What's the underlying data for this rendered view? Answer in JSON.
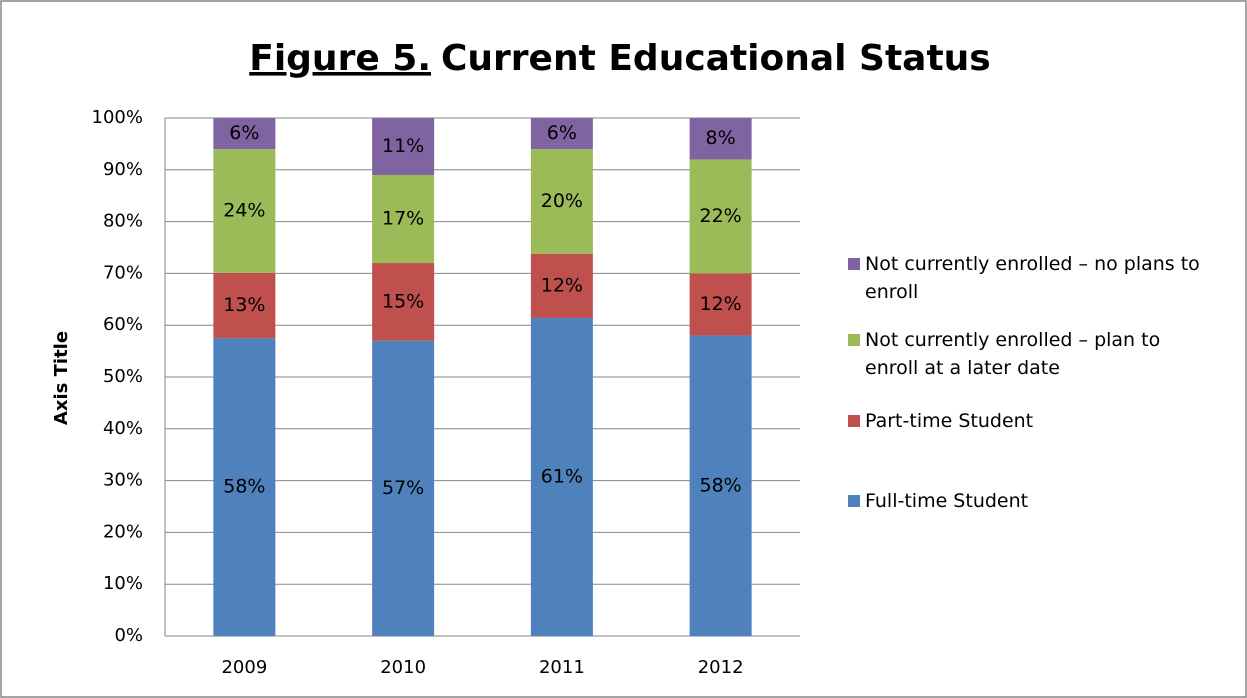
{
  "chart_data": {
    "type": "stacked_bar",
    "title": [
      "Figure 5.",
      "Current Educational Status"
    ],
    "y_axis_label": "Axis Title",
    "categories": [
      "2009",
      "2010",
      "2011",
      "2012"
    ],
    "series": [
      {
        "name": "Full-time Student",
        "color": "#4f81bd",
        "values": [
          57.5,
          57,
          61.4,
          58
        ],
        "value_labels": [
          "58%",
          "57%",
          "61%",
          "58%"
        ]
      },
      {
        "name": "Part-time Student",
        "color": "#c0504d",
        "values": [
          12.6,
          15,
          12.4,
          12
        ],
        "value_labels": [
          "13%",
          "15%",
          "12%",
          "12%"
        ]
      },
      {
        "name": "Not currently enrolled – plan to enroll at a later date",
        "color": "#9bbb59",
        "values": [
          23.9,
          17,
          20.2,
          22
        ],
        "value_labels": [
          "24%",
          "17%",
          "20%",
          "22%"
        ]
      },
      {
        "name": "Not currently enrolled – no plans to enroll",
        "color": "#8064a2",
        "values": [
          6,
          11,
          6,
          8
        ],
        "value_labels": [
          "6%",
          "11%",
          "6%",
          "8%"
        ]
      }
    ],
    "ylim": [
      0,
      100
    ],
    "yticks": [
      {
        "value": 0,
        "label": "0%"
      },
      {
        "value": 10,
        "label": "10%"
      },
      {
        "value": 20,
        "label": "20%"
      },
      {
        "value": 30,
        "label": "30%"
      },
      {
        "value": 40,
        "label": "40%"
      },
      {
        "value": 50,
        "label": "50%"
      },
      {
        "value": 60,
        "label": "60%"
      },
      {
        "value": 70,
        "label": "70%"
      },
      {
        "value": 80,
        "label": "80%"
      },
      {
        "value": 90,
        "label": "90%"
      },
      {
        "value": 100,
        "label": "100%"
      }
    ],
    "grid": true,
    "legend": "right"
  }
}
